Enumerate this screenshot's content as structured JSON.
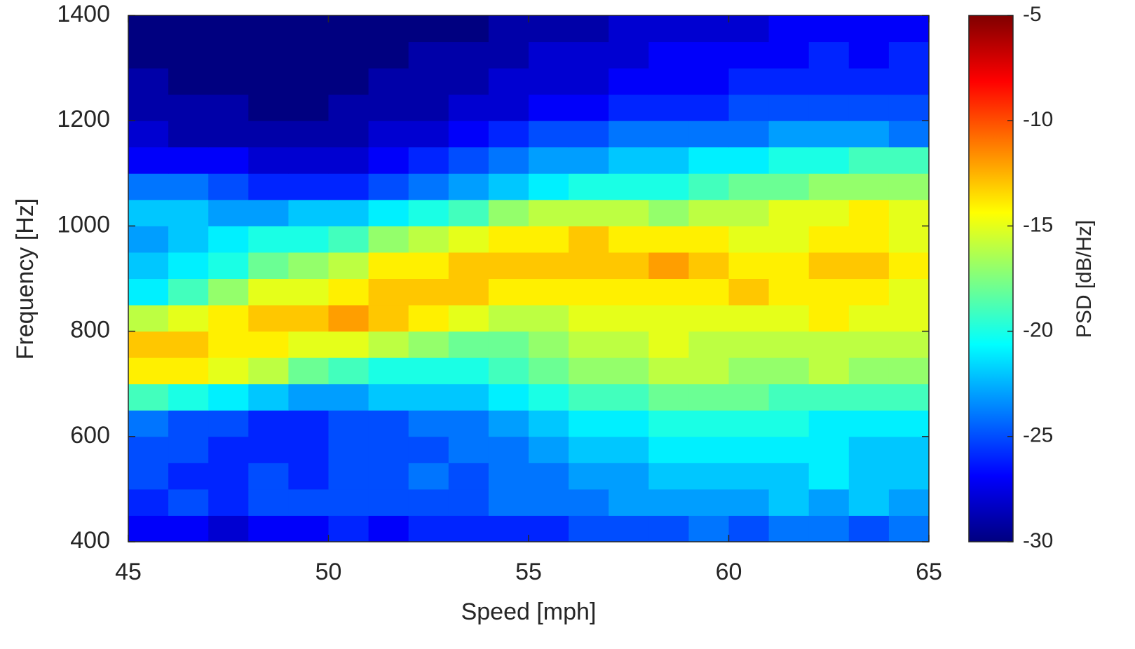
{
  "chart_data": {
    "type": "heatmap",
    "xlabel": "Speed [mph]",
    "ylabel": "Frequency [Hz]",
    "colorbar_label": "PSD [dB/Hz]",
    "colormap": "jet",
    "x": [
      45.5,
      46.5,
      47.5,
      48.5,
      49.5,
      50.5,
      51.5,
      52.5,
      53.5,
      54.5,
      55.5,
      56.5,
      57.5,
      58.5,
      59.5,
      60.5,
      61.5,
      62.5,
      63.5,
      64.5
    ],
    "y": [
      425,
      475,
      525,
      575,
      625,
      675,
      725,
      775,
      825,
      875,
      925,
      975,
      1025,
      1075,
      1125,
      1175,
      1225,
      1275,
      1325,
      1375
    ],
    "z": [
      [
        -27,
        -27,
        -28,
        -27,
        -27,
        -26,
        -27,
        -26,
        -26,
        -26,
        -26,
        -25,
        -25,
        -25,
        -24,
        -25,
        -24,
        -24,
        -25,
        -24
      ],
      [
        -26,
        -25,
        -26,
        -25,
        -25,
        -25,
        -25,
        -25,
        -25,
        -24,
        -24,
        -24,
        -23,
        -23,
        -23,
        -23,
        -22,
        -23,
        -22,
        -23
      ],
      [
        -25,
        -26,
        -26,
        -25,
        -26,
        -25,
        -25,
        -24,
        -25,
        -24,
        -24,
        -23,
        -23,
        -22,
        -22,
        -22,
        -22,
        -21,
        -22,
        -22
      ],
      [
        -25,
        -25,
        -26,
        -26,
        -26,
        -25,
        -25,
        -25,
        -24,
        -24,
        -23,
        -22,
        -22,
        -21,
        -21,
        -21,
        -21,
        -21,
        -22,
        -22
      ],
      [
        -24,
        -25,
        -25,
        -26,
        -26,
        -25,
        -25,
        -24,
        -24,
        -23,
        -22,
        -21,
        -21,
        -20,
        -20,
        -20,
        -20,
        -21,
        -21,
        -21
      ],
      [
        -19,
        -20,
        -21,
        -22,
        -23,
        -23,
        -22,
        -22,
        -22,
        -21,
        -20,
        -19,
        -19,
        -18,
        -18,
        -18,
        -19,
        -19,
        -19,
        -19
      ],
      [
        -14,
        -14,
        -15,
        -16,
        -18,
        -19,
        -20,
        -20,
        -20,
        -19,
        -18,
        -17,
        -17,
        -16,
        -16,
        -17,
        -17,
        -16,
        -17,
        -17
      ],
      [
        -13,
        -13,
        -14,
        -14,
        -15,
        -15,
        -16,
        -17,
        -18,
        -18,
        -17,
        -16,
        -16,
        -15,
        -16,
        -16,
        -16,
        -16,
        -16,
        -16
      ],
      [
        -16,
        -15,
        -14,
        -13,
        -13,
        -12,
        -13,
        -14,
        -15,
        -16,
        -16,
        -15,
        -15,
        -15,
        -15,
        -15,
        -15,
        -14,
        -15,
        -15
      ],
      [
        -21,
        -19,
        -17,
        -15,
        -15,
        -14,
        -13,
        -13,
        -13,
        -14,
        -14,
        -14,
        -14,
        -14,
        -14,
        -13,
        -14,
        -14,
        -14,
        -15
      ],
      [
        -22,
        -21,
        -20,
        -18,
        -17,
        -16,
        -14,
        -14,
        -13,
        -13,
        -13,
        -13,
        -13,
        -12,
        -13,
        -14,
        -14,
        -13,
        -13,
        -14
      ],
      [
        -23,
        -22,
        -21,
        -20,
        -20,
        -19,
        -17,
        -16,
        -15,
        -14,
        -14,
        -13,
        -14,
        -14,
        -14,
        -15,
        -15,
        -14,
        -14,
        -15
      ],
      [
        -22,
        -22,
        -23,
        -23,
        -22,
        -22,
        -21,
        -20,
        -19,
        -17,
        -16,
        -16,
        -16,
        -17,
        -16,
        -16,
        -15,
        -15,
        -14,
        -15
      ],
      [
        -24,
        -24,
        -25,
        -26,
        -26,
        -26,
        -25,
        -24,
        -23,
        -22,
        -21,
        -20,
        -20,
        -20,
        -19,
        -18,
        -18,
        -17,
        -17,
        -17
      ],
      [
        -27,
        -27,
        -27,
        -28,
        -28,
        -28,
        -27,
        -26,
        -25,
        -24,
        -23,
        -23,
        -22,
        -22,
        -21,
        -21,
        -20,
        -20,
        -19,
        -19
      ],
      [
        -28,
        -29,
        -29,
        -29,
        -29,
        -29,
        -28,
        -28,
        -27,
        -26,
        -25,
        -25,
        -24,
        -24,
        -24,
        -24,
        -23,
        -23,
        -23,
        -24
      ],
      [
        -29,
        -29,
        -29,
        -30,
        -30,
        -29,
        -29,
        -29,
        -28,
        -28,
        -27,
        -27,
        -26,
        -26,
        -26,
        -25,
        -25,
        -25,
        -25,
        -25
      ],
      [
        -29,
        -30,
        -30,
        -30,
        -30,
        -30,
        -29,
        -29,
        -29,
        -28,
        -28,
        -28,
        -27,
        -27,
        -27,
        -26,
        -26,
        -26,
        -26,
        -26
      ],
      [
        -30,
        -30,
        -30,
        -30,
        -30,
        -30,
        -30,
        -29,
        -29,
        -29,
        -28,
        -28,
        -28,
        -27,
        -27,
        -27,
        -27,
        -26,
        -27,
        -26
      ],
      [
        -30,
        -30,
        -30,
        -30,
        -30,
        -30,
        -30,
        -30,
        -30,
        -29,
        -29,
        -29,
        -28,
        -28,
        -28,
        -28,
        -27,
        -27,
        -27,
        -27
      ]
    ],
    "xlim": [
      45,
      65
    ],
    "xticks": [
      45,
      50,
      55,
      60,
      65
    ],
    "ylim": [
      400,
      1400
    ],
    "yticks": [
      400,
      600,
      800,
      1000,
      1200,
      1400
    ],
    "clim": [
      -30,
      -5
    ],
    "cticks": [
      -30,
      -25,
      -20,
      -15,
      -10,
      -5
    ]
  }
}
